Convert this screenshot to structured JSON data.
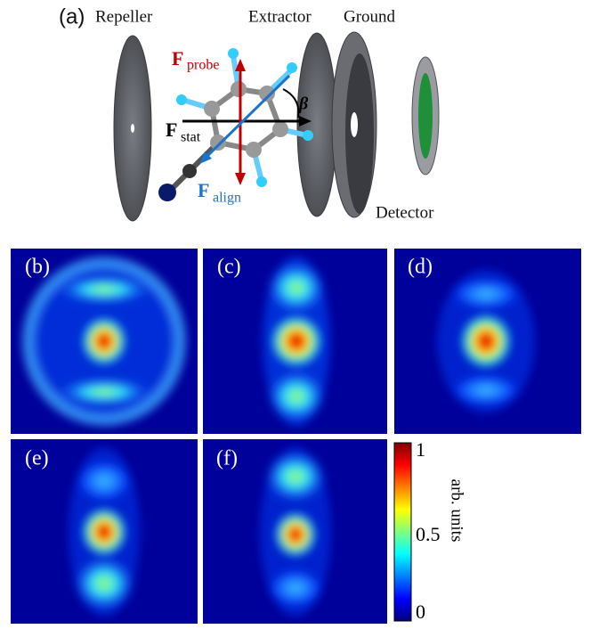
{
  "diagram": {
    "panel_label": "(a)",
    "labels": {
      "repeller": "Repeller",
      "extractor": "Extractor",
      "ground": "Ground",
      "detector": "Detector"
    },
    "vectors": {
      "probe": {
        "symbol": "F",
        "subscript": "probe"
      },
      "stat": {
        "symbol": "F",
        "subscript": "stat"
      },
      "align": {
        "symbol": "F",
        "subscript": "align"
      }
    },
    "angle": "β"
  },
  "images": [
    {
      "label": "(b)"
    },
    {
      "label": "(c)"
    },
    {
      "label": "(d)"
    },
    {
      "label": "(e)"
    },
    {
      "label": "(f)"
    }
  ],
  "colorbar": {
    "label": "arb. units",
    "ticks": [
      "1",
      "0.5",
      "0"
    ]
  }
}
